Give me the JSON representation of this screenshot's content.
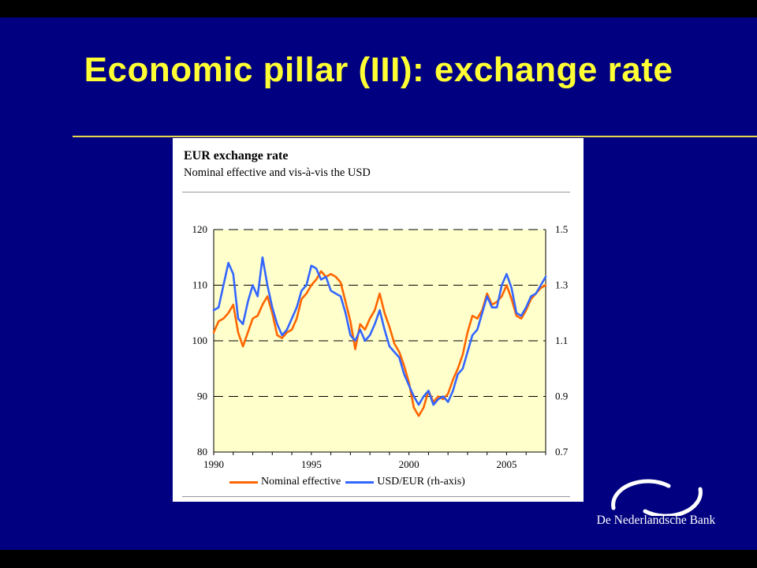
{
  "slide": {
    "title": "Economic pillar (III): exchange rate",
    "brand": "De Nederlandsche Bank",
    "colors": {
      "background": "#000080",
      "title": "#ffff33",
      "rule": "#e6d84a"
    }
  },
  "chart_data": {
    "type": "line",
    "title": "EUR exchange rate",
    "subtitle": "Nominal effective and vis-à-vis the USD",
    "plot_background": "#ffffcc",
    "grid": "dashed-horizontal",
    "legend_position": "bottom",
    "x_axis": {
      "range": [
        1990,
        2007
      ],
      "ticks": [
        "1990",
        "1995",
        "2000",
        "2005"
      ]
    },
    "y_left": {
      "range": [
        80,
        120
      ],
      "ticks": [
        "120",
        "110",
        "100",
        "90",
        "80"
      ]
    },
    "y_right": {
      "range": [
        0.7,
        1.5
      ],
      "ticks": [
        "1.5",
        "1.3",
        "1.1",
        "0.9",
        "0.7"
      ]
    },
    "series": [
      {
        "name": "Nominal effective",
        "axis": "left",
        "color": "#ff6600",
        "x": [
          1990.0,
          1990.25,
          1990.5,
          1990.75,
          1991.0,
          1991.25,
          1991.5,
          1991.75,
          1992.0,
          1992.25,
          1992.5,
          1992.75,
          1993.0,
          1993.25,
          1993.5,
          1993.75,
          1994.0,
          1994.25,
          1994.5,
          1994.75,
          1995.0,
          1995.25,
          1995.5,
          1995.75,
          1996.0,
          1996.25,
          1996.5,
          1996.75,
          1997.0,
          1997.25,
          1997.5,
          1997.75,
          1998.0,
          1998.25,
          1998.5,
          1998.75,
          1999.0,
          1999.25,
          1999.5,
          1999.75,
          2000.0,
          2000.25,
          2000.5,
          2000.75,
          2001.0,
          2001.25,
          2001.5,
          2001.75,
          2002.0,
          2002.25,
          2002.5,
          2002.75,
          2003.0,
          2003.25,
          2003.5,
          2003.75,
          2004.0,
          2004.25,
          2004.5,
          2004.75,
          2005.0,
          2005.25,
          2005.5,
          2005.75,
          2006.0,
          2006.25,
          2006.5,
          2006.75,
          2007.0
        ],
        "values": [
          101.5,
          103.5,
          104.0,
          105.0,
          106.5,
          101.5,
          99.0,
          101.5,
          104.0,
          104.5,
          106.5,
          108.0,
          105.0,
          101.0,
          100.5,
          101.5,
          102.0,
          104.0,
          107.5,
          108.5,
          110.0,
          111.0,
          112.5,
          111.5,
          112.0,
          111.5,
          110.5,
          107.0,
          103.5,
          98.5,
          103.0,
          102.0,
          104.0,
          105.5,
          108.5,
          105.0,
          102.5,
          99.5,
          98.0,
          95.5,
          92.5,
          88.0,
          86.5,
          88.0,
          91.0,
          89.0,
          90.0,
          89.5,
          90.5,
          93.0,
          95.0,
          97.5,
          101.5,
          104.5,
          104.0,
          105.5,
          108.5,
          106.5,
          107.0,
          108.0,
          110.0,
          107.5,
          104.5,
          104.0,
          105.5,
          107.5,
          108.5,
          109.5,
          110.0
        ]
      },
      {
        "name": "USD/EUR (rh-axis)",
        "axis": "right",
        "color": "#3366ff",
        "x": [
          1990.0,
          1990.25,
          1990.5,
          1990.75,
          1991.0,
          1991.25,
          1991.5,
          1991.75,
          1992.0,
          1992.25,
          1992.5,
          1992.75,
          1993.0,
          1993.25,
          1993.5,
          1993.75,
          1994.0,
          1994.25,
          1994.5,
          1994.75,
          1995.0,
          1995.25,
          1995.5,
          1995.75,
          1996.0,
          1996.25,
          1996.5,
          1996.75,
          1997.0,
          1997.25,
          1997.5,
          1997.75,
          1998.0,
          1998.25,
          1998.5,
          1998.75,
          1999.0,
          1999.25,
          1999.5,
          1999.75,
          2000.0,
          2000.25,
          2000.5,
          2000.75,
          2001.0,
          2001.25,
          2001.5,
          2001.75,
          2002.0,
          2002.25,
          2002.5,
          2002.75,
          2003.0,
          2003.25,
          2003.5,
          2003.75,
          2004.0,
          2004.25,
          2004.5,
          2004.75,
          2005.0,
          2005.25,
          2005.5,
          2005.75,
          2006.0,
          2006.25,
          2006.5,
          2006.75,
          2007.0
        ],
        "values": [
          1.21,
          1.22,
          1.3,
          1.38,
          1.34,
          1.18,
          1.16,
          1.24,
          1.3,
          1.26,
          1.4,
          1.3,
          1.22,
          1.16,
          1.12,
          1.14,
          1.18,
          1.22,
          1.28,
          1.3,
          1.37,
          1.36,
          1.32,
          1.33,
          1.28,
          1.27,
          1.26,
          1.2,
          1.12,
          1.1,
          1.14,
          1.1,
          1.12,
          1.16,
          1.21,
          1.14,
          1.08,
          1.06,
          1.04,
          0.98,
          0.94,
          0.9,
          0.87,
          0.9,
          0.92,
          0.87,
          0.89,
          0.9,
          0.88,
          0.92,
          0.98,
          1.0,
          1.06,
          1.12,
          1.14,
          1.2,
          1.26,
          1.22,
          1.22,
          1.3,
          1.34,
          1.29,
          1.2,
          1.19,
          1.22,
          1.26,
          1.27,
          1.3,
          1.33
        ]
      }
    ]
  }
}
